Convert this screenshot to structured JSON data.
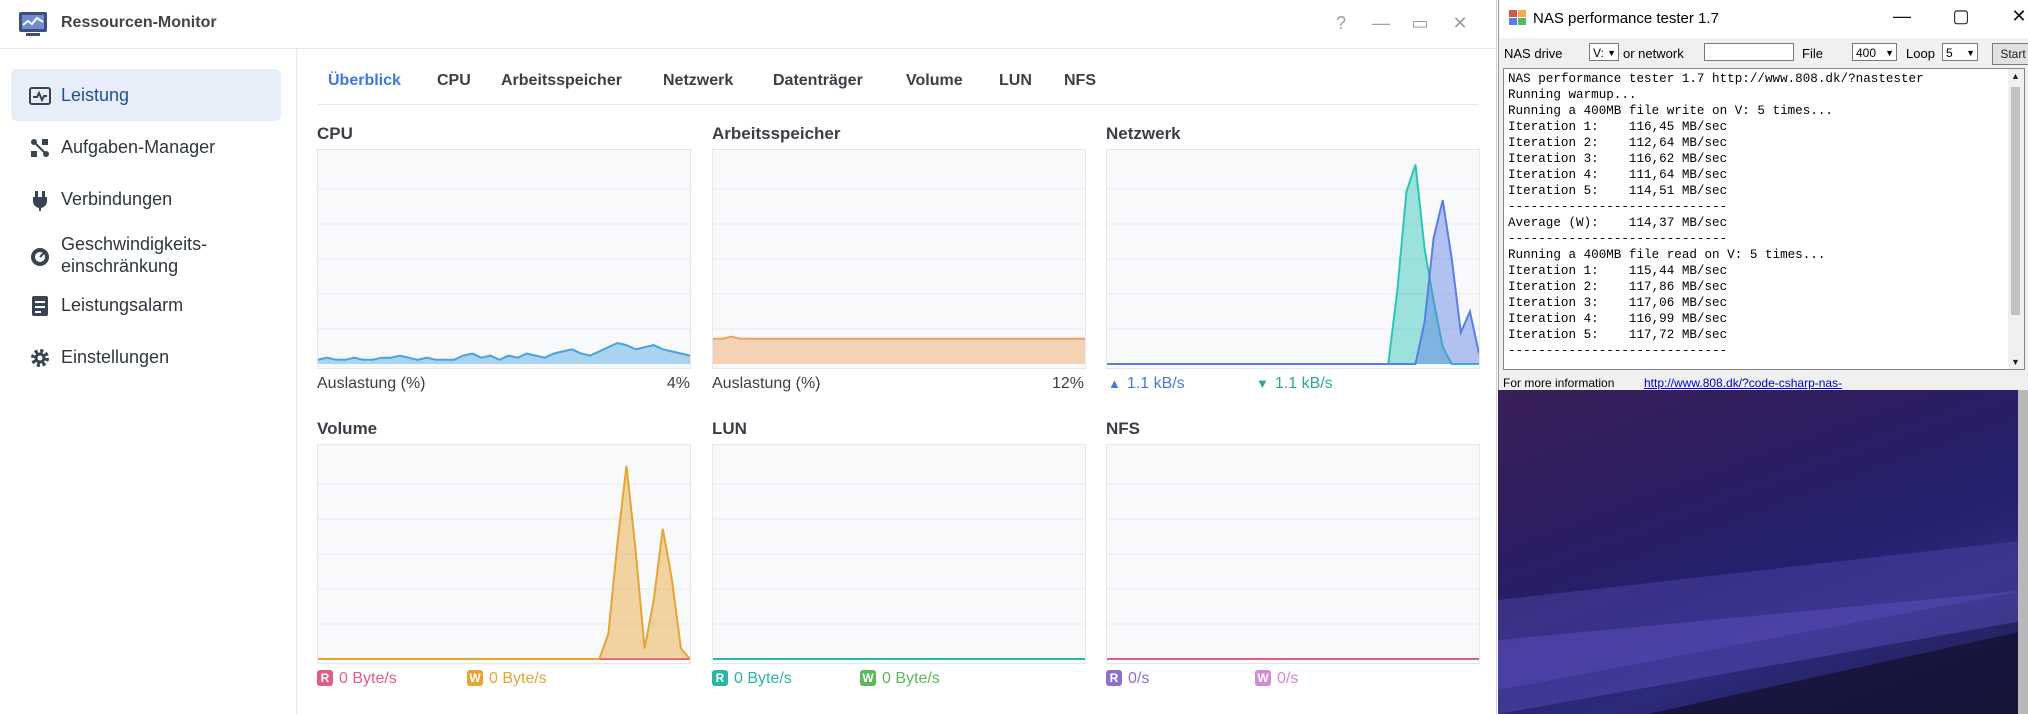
{
  "rm": {
    "title": "Ressourcen-Monitor",
    "controls": {
      "help": "?",
      "minimize": "—",
      "maximize": "▭",
      "close": "✕"
    },
    "sidebar": [
      {
        "label": "Leistung",
        "icon": "chart-icon"
      },
      {
        "label": "Aufgaben-Manager",
        "icon": "tasks-icon"
      },
      {
        "label": "Verbindungen",
        "icon": "plug-icon"
      },
      {
        "label": "Geschwindigkeits-\neinschränkung",
        "icon": "gauge-icon"
      },
      {
        "label": "Leistungsalarm",
        "icon": "alarm-doc-icon"
      },
      {
        "label": "Einstellungen",
        "icon": "gear-icon"
      }
    ],
    "tabs": [
      "Überblick",
      "CPU",
      "Arbeitsspeicher",
      "Netzwerk",
      "Datenträger",
      "Volume",
      "LUN",
      "NFS"
    ],
    "panels": {
      "cpu": {
        "title": "CPU",
        "label": "Auslastung (%)",
        "value": "4%"
      },
      "mem": {
        "title": "Arbeitsspeicher",
        "label": "Auslastung (%)",
        "value": "12%"
      },
      "net": {
        "title": "Netzwerk",
        "up": "1.1 kB/s",
        "down": "1.1 kB/s"
      },
      "vol": {
        "title": "Volume",
        "r_badge": "R",
        "w_badge": "W",
        "read": "0 Byte/s",
        "write": "0 Byte/s"
      },
      "lun": {
        "title": "LUN",
        "r_badge": "R",
        "w_badge": "W",
        "read": "0 Byte/s",
        "write": "0 Byte/s"
      },
      "nfs": {
        "title": "NFS",
        "r_badge": "R",
        "w_badge": "W",
        "read": "0/s",
        "write": "0/s"
      }
    },
    "colors": {
      "accent": "#3c78d8",
      "cpu": "#4aa3df",
      "mem": "#f0a15e",
      "net_send": "#2ec4b6",
      "net_recv": "#5b7ee5",
      "vol_read": "#e05c8a",
      "vol_write": "#e6a532",
      "lun_read": "#2ab5a6",
      "lun_write": "#5cb85c",
      "nfs_read": "#8e6fd0",
      "nfs_write": "#d58ad8"
    }
  },
  "nas": {
    "title": "NAS performance tester 1.7",
    "toolbar": {
      "drive_label": "NAS drive",
      "drive_value": "V:",
      "network_label": "or network",
      "network_value": "",
      "file_label": "File",
      "file_value": "400",
      "loop_label": "Loop",
      "loop_value": "5",
      "start": "Start"
    },
    "log": [
      "NAS performance tester 1.7 http://www.808.dk/?nastester",
      "Running warmup...",
      "Running a 400MB file write on V: 5 times...",
      "Iteration 1:    116,45 MB/sec",
      "Iteration 2:    112,64 MB/sec",
      "Iteration 3:    116,62 MB/sec",
      "Iteration 4:    111,64 MB/sec",
      "Iteration 5:    114,51 MB/sec",
      "-----------------------------",
      "Average (W):    114,37 MB/sec",
      "-----------------------------",
      "Running a 400MB file read on V: 5 times...",
      "Iteration 1:    115,44 MB/sec",
      "Iteration 2:    117,86 MB/sec",
      "Iteration 3:    117,06 MB/sec",
      "Iteration 4:    116,99 MB/sec",
      "Iteration 5:    117,72 MB/sec",
      "-----------------------------"
    ],
    "footer_text": "For more information",
    "footer_link": "http://www.808.dk/?code-csharp-nas-"
  },
  "chart_data": [
    {
      "type": "area",
      "title": "CPU",
      "ylim": [
        0,
        100
      ],
      "series": [
        {
          "values": [
            2,
            3,
            2,
            2,
            3,
            2,
            2,
            3,
            3,
            4,
            3,
            2,
            3,
            2,
            2,
            2,
            4,
            5,
            3,
            4,
            2,
            4,
            3,
            5,
            4,
            3,
            5,
            6,
            7,
            5,
            4,
            6,
            8,
            10,
            9,
            7,
            8,
            9,
            7,
            6,
            5,
            4
          ]
        }
      ]
    },
    {
      "type": "area",
      "title": "Arbeitsspeicher",
      "ylim": [
        0,
        100
      ],
      "series": [
        {
          "values": [
            12,
            12,
            13,
            12,
            12,
            12,
            12,
            12,
            12,
            12,
            12,
            12,
            12,
            12,
            12,
            12,
            12,
            12,
            12,
            12,
            12,
            12,
            12,
            12,
            12,
            12,
            12,
            12,
            12,
            12,
            12,
            12,
            12,
            12,
            12,
            12,
            12,
            12,
            12,
            12,
            12,
            12
          ]
        }
      ]
    },
    {
      "type": "area",
      "title": "Netzwerk",
      "ylim": [
        0,
        100
      ],
      "series": [
        {
          "values": [
            0,
            0,
            0,
            0,
            0,
            0,
            0,
            0,
            0,
            0,
            0,
            0,
            0,
            0,
            0,
            0,
            0,
            0,
            0,
            0,
            0,
            0,
            0,
            0,
            0,
            0,
            0,
            0,
            0,
            0,
            0,
            0,
            35,
            82,
            95,
            55,
            30,
            8,
            0,
            0,
            0,
            0
          ]
        },
        {
          "values": [
            0,
            0,
            0,
            0,
            0,
            0,
            0,
            0,
            0,
            0,
            0,
            0,
            0,
            0,
            0,
            0,
            0,
            0,
            0,
            0,
            0,
            0,
            0,
            0,
            0,
            0,
            0,
            0,
            0,
            0,
            0,
            0,
            0,
            0,
            0,
            20,
            60,
            78,
            50,
            15,
            25,
            5
          ]
        }
      ]
    },
    {
      "type": "area",
      "title": "Volume",
      "ylim": [
        0,
        100
      ],
      "series": [
        {
          "values": [
            0,
            0,
            0,
            0,
            0,
            0,
            0,
            0,
            0,
            0,
            0,
            0,
            0,
            0,
            0,
            0,
            0,
            0,
            0,
            0,
            0,
            0,
            0,
            0,
            0,
            0,
            0,
            0,
            0,
            0,
            0,
            0,
            0,
            0,
            0,
            0,
            0,
            0,
            0,
            0,
            0,
            0
          ]
        },
        {
          "values": [
            0,
            0,
            0,
            0,
            0,
            0,
            0,
            0,
            0,
            0,
            0,
            0,
            0,
            0,
            0,
            0,
            0,
            0,
            0,
            0,
            0,
            0,
            0,
            0,
            0,
            0,
            0,
            0,
            0,
            0,
            0,
            0,
            12,
            55,
            92,
            52,
            5,
            28,
            62,
            38,
            5,
            0
          ]
        }
      ]
    },
    {
      "type": "area",
      "title": "LUN",
      "ylim": [
        0,
        100
      ],
      "series": [
        {
          "values": [
            0,
            0,
            0,
            0,
            0,
            0,
            0,
            0,
            0,
            0,
            0,
            0,
            0,
            0,
            0,
            0,
            0,
            0,
            0,
            0,
            0,
            0,
            0,
            0,
            0,
            0,
            0,
            0,
            0,
            0,
            0,
            0,
            0,
            0,
            0,
            0,
            0,
            0,
            0,
            0,
            0,
            0
          ]
        }
      ]
    },
    {
      "type": "area",
      "title": "NFS",
      "ylim": [
        0,
        100
      ],
      "series": [
        {
          "values": [
            0,
            0,
            0,
            0,
            0,
            0,
            0,
            0,
            0,
            0,
            0,
            0,
            0,
            0,
            0,
            0,
            0,
            0,
            0,
            0,
            0,
            0,
            0,
            0,
            0,
            0,
            0,
            0,
            0,
            0,
            0,
            0,
            0,
            0,
            0,
            0,
            0,
            0,
            0,
            0,
            0,
            0
          ]
        }
      ]
    }
  ]
}
